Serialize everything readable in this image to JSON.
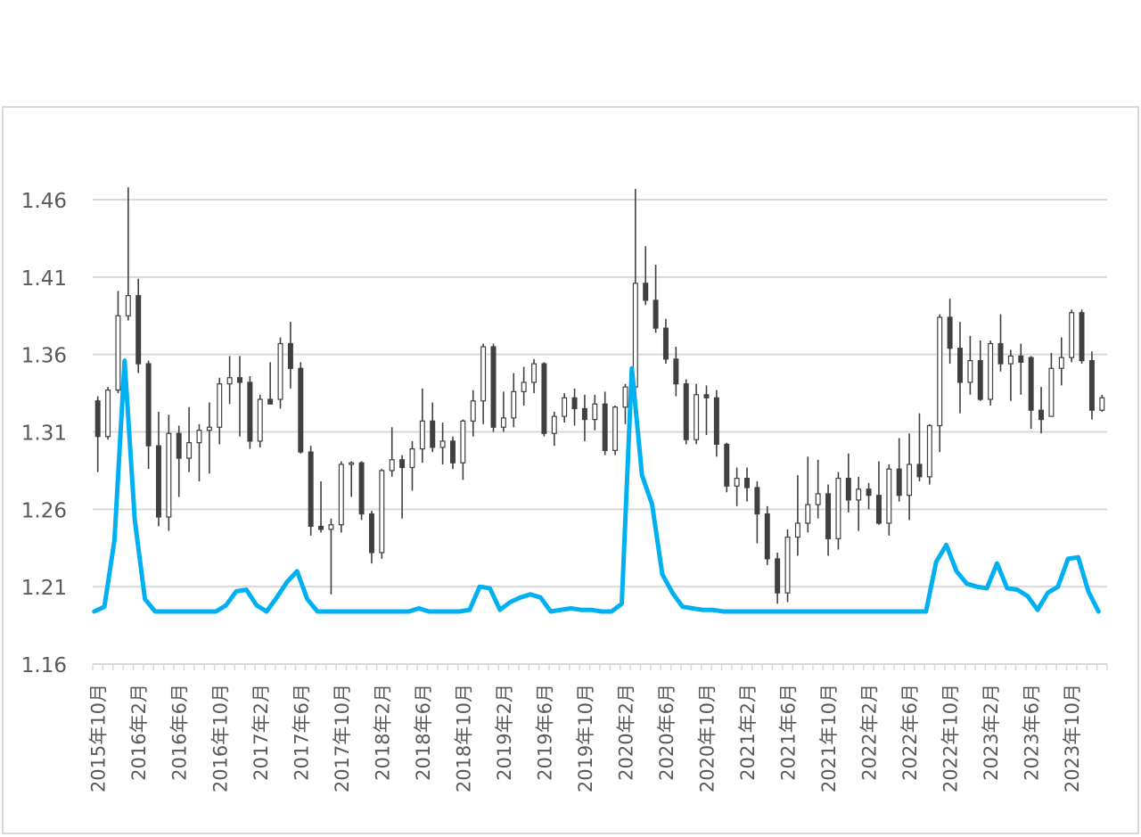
{
  "chart_data": {
    "type": "candlestick+line",
    "title": "",
    "xlabel": "",
    "ylabel": "",
    "ylim": [
      1.16,
      1.46
    ],
    "y_ticks": [
      "1.16",
      "1.21",
      "1.26",
      "1.31",
      "1.36",
      "1.41",
      "1.46"
    ],
    "grid": true,
    "x_tick_labels": [
      "2015年10月",
      "2016年2月",
      "2016年6月",
      "2016年10月",
      "2017年2月",
      "2017年6月",
      "2017年10月",
      "2018年2月",
      "2018年6月",
      "2018年10月",
      "2019年2月",
      "2019年6月",
      "2019年10月",
      "2020年2月",
      "2020年6月",
      "2020年10月",
      "2021年2月",
      "2021年6月",
      "2021年10月",
      "2022年2月",
      "2022年6月",
      "2022年10月",
      "2023年2月",
      "2023年6月",
      "2023年10月"
    ],
    "line_color": "#00b0f0",
    "candle_color": "#404040",
    "candles": [
      [
        1.33,
        1.333,
        1.284,
        1.307
      ],
      [
        1.307,
        1.339,
        1.305,
        1.337
      ],
      [
        1.337,
        1.401,
        1.335,
        1.385
      ],
      [
        1.385,
        1.468,
        1.382,
        1.398
      ],
      [
        1.398,
        1.409,
        1.348,
        1.354
      ],
      [
        1.354,
        1.356,
        1.286,
        1.301
      ],
      [
        1.301,
        1.323,
        1.249,
        1.255
      ],
      [
        1.255,
        1.321,
        1.246,
        1.309
      ],
      [
        1.309,
        1.314,
        1.268,
        1.293
      ],
      [
        1.293,
        1.326,
        1.284,
        1.303
      ],
      [
        1.303,
        1.315,
        1.278,
        1.311
      ],
      [
        1.311,
        1.329,
        1.283,
        1.313
      ],
      [
        1.313,
        1.345,
        1.302,
        1.341
      ],
      [
        1.341,
        1.359,
        1.328,
        1.345
      ],
      [
        1.345,
        1.359,
        1.307,
        1.342
      ],
      [
        1.342,
        1.346,
        1.299,
        1.304
      ],
      [
        1.304,
        1.334,
        1.3,
        1.331
      ],
      [
        1.331,
        1.355,
        1.329,
        1.328
      ],
      [
        1.331,
        1.371,
        1.325,
        1.367
      ],
      [
        1.367,
        1.381,
        1.338,
        1.351
      ],
      [
        1.351,
        1.355,
        1.296,
        1.297
      ],
      [
        1.297,
        1.301,
        1.243,
        1.249
      ],
      [
        1.249,
        1.278,
        1.245,
        1.247
      ],
      [
        1.247,
        1.254,
        1.205,
        1.25
      ],
      [
        1.25,
        1.291,
        1.245,
        1.289
      ],
      [
        1.289,
        1.291,
        1.268,
        1.29
      ],
      [
        1.29,
        1.291,
        1.253,
        1.257
      ],
      [
        1.257,
        1.259,
        1.225,
        1.232
      ],
      [
        1.232,
        1.286,
        1.228,
        1.285
      ],
      [
        1.285,
        1.313,
        1.281,
        1.292
      ],
      [
        1.292,
        1.295,
        1.254,
        1.287
      ],
      [
        1.287,
        1.304,
        1.272,
        1.299
      ],
      [
        1.299,
        1.338,
        1.29,
        1.317
      ],
      [
        1.317,
        1.329,
        1.297,
        1.3
      ],
      [
        1.3,
        1.316,
        1.289,
        1.304
      ],
      [
        1.304,
        1.307,
        1.286,
        1.29
      ],
      [
        1.29,
        1.318,
        1.279,
        1.317
      ],
      [
        1.317,
        1.337,
        1.307,
        1.33
      ],
      [
        1.33,
        1.367,
        1.315,
        1.365
      ],
      [
        1.365,
        1.367,
        1.31,
        1.313
      ],
      [
        1.313,
        1.336,
        1.31,
        1.319
      ],
      [
        1.319,
        1.348,
        1.313,
        1.336
      ],
      [
        1.336,
        1.352,
        1.327,
        1.342
      ],
      [
        1.342,
        1.357,
        1.335,
        1.354
      ],
      [
        1.354,
        1.355,
        1.307,
        1.309
      ],
      [
        1.309,
        1.323,
        1.301,
        1.32
      ],
      [
        1.32,
        1.335,
        1.316,
        1.332
      ],
      [
        1.332,
        1.338,
        1.314,
        1.325
      ],
      [
        1.325,
        1.334,
        1.304,
        1.318
      ],
      [
        1.318,
        1.334,
        1.311,
        1.328
      ],
      [
        1.328,
        1.336,
        1.295,
        1.298
      ],
      [
        1.298,
        1.327,
        1.295,
        1.326
      ],
      [
        1.326,
        1.341,
        1.315,
        1.339
      ],
      [
        1.339,
        1.467,
        1.333,
        1.406
      ],
      [
        1.406,
        1.43,
        1.392,
        1.395
      ],
      [
        1.395,
        1.418,
        1.374,
        1.377
      ],
      [
        1.377,
        1.383,
        1.354,
        1.357
      ],
      [
        1.357,
        1.365,
        1.333,
        1.341
      ],
      [
        1.341,
        1.344,
        1.302,
        1.305
      ],
      [
        1.305,
        1.341,
        1.302,
        1.334
      ],
      [
        1.334,
        1.34,
        1.308,
        1.332
      ],
      [
        1.332,
        1.337,
        1.294,
        1.302
      ],
      [
        1.302,
        1.303,
        1.271,
        1.275
      ],
      [
        1.275,
        1.287,
        1.262,
        1.28
      ],
      [
        1.28,
        1.287,
        1.265,
        1.274
      ],
      [
        1.274,
        1.278,
        1.238,
        1.257
      ],
      [
        1.257,
        1.262,
        1.224,
        1.228
      ],
      [
        1.228,
        1.232,
        1.199,
        1.206
      ],
      [
        1.206,
        1.247,
        1.2,
        1.242
      ],
      [
        1.242,
        1.282,
        1.23,
        1.251
      ],
      [
        1.251,
        1.294,
        1.245,
        1.263
      ],
      [
        1.263,
        1.292,
        1.254,
        1.27
      ],
      [
        1.27,
        1.276,
        1.23,
        1.241
      ],
      [
        1.241,
        1.284,
        1.234,
        1.28
      ],
      [
        1.28,
        1.296,
        1.258,
        1.266
      ],
      [
        1.266,
        1.281,
        1.246,
        1.273
      ],
      [
        1.273,
        1.277,
        1.26,
        1.269
      ],
      [
        1.269,
        1.291,
        1.25,
        1.251
      ],
      [
        1.251,
        1.289,
        1.243,
        1.286
      ],
      [
        1.286,
        1.306,
        1.265,
        1.269
      ],
      [
        1.269,
        1.309,
        1.253,
        1.289
      ],
      [
        1.289,
        1.322,
        1.278,
        1.281
      ],
      [
        1.281,
        1.315,
        1.276,
        1.314
      ],
      [
        1.314,
        1.386,
        1.297,
        1.384
      ],
      [
        1.384,
        1.396,
        1.354,
        1.364
      ],
      [
        1.364,
        1.381,
        1.322,
        1.342
      ],
      [
        1.342,
        1.372,
        1.334,
        1.356
      ],
      [
        1.356,
        1.369,
        1.33,
        1.331
      ],
      [
        1.331,
        1.369,
        1.327,
        1.367
      ],
      [
        1.367,
        1.386,
        1.349,
        1.354
      ],
      [
        1.354,
        1.363,
        1.33,
        1.359
      ],
      [
        1.359,
        1.367,
        1.334,
        1.355
      ],
      [
        1.358,
        1.359,
        1.312,
        1.324
      ],
      [
        1.324,
        1.339,
        1.309,
        1.318
      ],
      [
        1.32,
        1.361,
        1.32,
        1.351
      ],
      [
        1.351,
        1.371,
        1.34,
        1.358
      ],
      [
        1.358,
        1.389,
        1.355,
        1.387
      ],
      [
        1.387,
        1.389,
        1.354,
        1.356
      ],
      [
        1.356,
        1.362,
        1.318,
        1.324
      ],
      [
        1.324,
        1.334,
        1.323,
        1.332
      ]
    ],
    "line": [
      1.194,
      1.197,
      1.24,
      1.356,
      1.253,
      1.202,
      1.194,
      1.194,
      1.194,
      1.194,
      1.194,
      1.194,
      1.194,
      1.198,
      1.207,
      1.208,
      1.198,
      1.194,
      1.203,
      1.213,
      1.22,
      1.202,
      1.194,
      1.194,
      1.194,
      1.194,
      1.194,
      1.194,
      1.194,
      1.194,
      1.194,
      1.194,
      1.196,
      1.194,
      1.194,
      1.194,
      1.194,
      1.195,
      1.21,
      1.209,
      1.195,
      1.2,
      1.203,
      1.205,
      1.203,
      1.194,
      1.195,
      1.196,
      1.195,
      1.195,
      1.194,
      1.194,
      1.199,
      1.351,
      1.282,
      1.263,
      1.218,
      1.206,
      1.197,
      1.196,
      1.195,
      1.195,
      1.194,
      1.194,
      1.194,
      1.194,
      1.194,
      1.194,
      1.194,
      1.194,
      1.194,
      1.194,
      1.194,
      1.194,
      1.194,
      1.194,
      1.194,
      1.194,
      1.194,
      1.194,
      1.194,
      1.194,
      1.194,
      1.226,
      1.237,
      1.22,
      1.212,
      1.21,
      1.209,
      1.225,
      1.209,
      1.208,
      1.204,
      1.195,
      1.206,
      1.21,
      1.228,
      1.229,
      1.207,
      1.194
    ]
  }
}
